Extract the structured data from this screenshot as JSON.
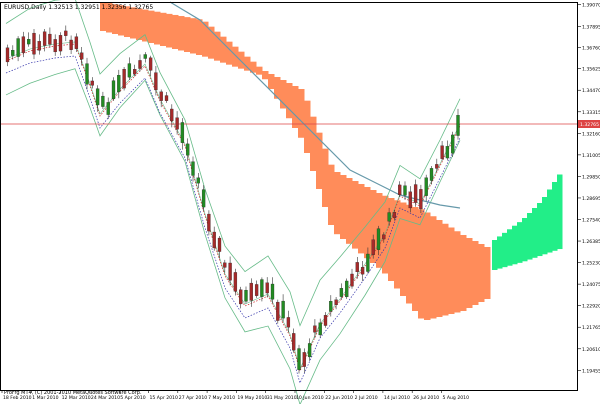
{
  "chart_data": {
    "type": "candlestick",
    "symbol_label": "EURUSD,Daily",
    "ohlc_label": "1.32513 1.32951 1.32356 1.32765",
    "footer": "ProFrg MT4, (C) 2001-2010 MetaQuotes Software Corp.",
    "current_price_label": "1.32765",
    "ylim": [
      1.184,
      1.392
    ],
    "y_ticks": [
      1.3907,
      1.37895,
      1.3676,
      1.35625,
      1.3447,
      1.33315,
      1.3216,
      1.31005,
      1.2985,
      1.28695,
      1.2754,
      1.26385,
      1.2523,
      1.24075,
      1.2292,
      1.21765,
      1.2061,
      1.19455
    ],
    "x_ticks": [
      "18 Feb 2010",
      "1 Mar 2010",
      "12 Mar 2010",
      "24 Mar 2010",
      "5 Apr 2010",
      "15 Apr 2010",
      "27 Apr 2010",
      "7 May 2010",
      "19 May 2010",
      "31 May 2010",
      "10 Jun 2010",
      "22 Jun 2010",
      "2 Jul 2010",
      "14 Jul 2010",
      "26 Jul 2010",
      "5 Aug 2010"
    ],
    "colors": {
      "bull": "#228b22",
      "bear": "#a52a2a",
      "cloud_bear": "#ff8c5a",
      "cloud_bull": "#22ee88",
      "bands": "#66bb88",
      "moving_average": "#6699aa",
      "kijun": "#3333aa",
      "tenkan": "#cc2222",
      "price_line": "#dd4444"
    }
  }
}
